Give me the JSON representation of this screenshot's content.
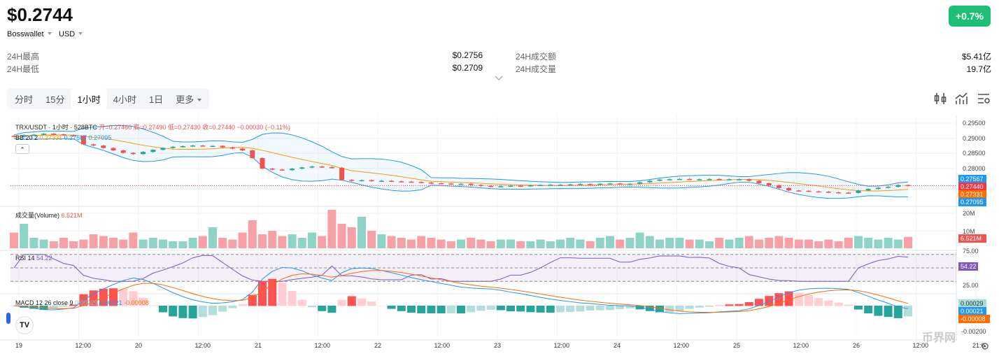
{
  "header": {
    "price": "$0.2744",
    "change": "+0.7%",
    "exchange": "Bosswallet",
    "currency": "USD"
  },
  "stats": [
    {
      "label": "24H最高",
      "value": "$0.2756"
    },
    {
      "label": "24H最低",
      "value": "$0.2709"
    },
    {
      "label": "24H成交额",
      "value": "$5.41亿"
    },
    {
      "label": "24H成交量",
      "value": "19.7亿"
    }
  ],
  "tabs": [
    {
      "label": "分时"
    },
    {
      "label": "15分"
    },
    {
      "label": "1小时",
      "active": true
    },
    {
      "label": "4小时"
    },
    {
      "label": "1日"
    },
    {
      "label": "更多"
    }
  ],
  "legend": {
    "title": "TRX/USDT · 1小时 · 528BTC",
    "ohlc": "开=0.27460 高=0.27490 低=0.27430 收=0.27440 −0.00030 (−0.11%)",
    "bb_label": "BB 20 2",
    "bb_mid": "0.27331",
    "bb_up": "0.27567",
    "bb_low": "0.27095",
    "vol_label": "成交量(Volume)",
    "vol_value": "6.521M",
    "rsi_label": "RSI 14",
    "rsi_value": "54.22",
    "macd_label": "MACD 12 26 close 9",
    "macd_hist": "0.00029",
    "macd_line": "0.00021",
    "macd_signal": "-0.00008"
  },
  "price_axis": [
    "0.29500",
    "0.29000",
    "0.28500",
    "0.28000"
  ],
  "price_tags": {
    "bb_up": "0.27567",
    "last": "0.27440",
    "bb_mid": "0.27331",
    "bb_low": "0.27095"
  },
  "vol_axis": [
    "20M",
    "10M"
  ],
  "vol_tag": "6.521M",
  "rsi_axis": [
    "75.00",
    "25.00"
  ],
  "rsi_tag": "54.22",
  "macd_axis": [
    "-0.00200"
  ],
  "macd_tags": {
    "hist": "0.00029",
    "line": "0.00021",
    "signal": "-0.00008"
  },
  "time_axis": [
    "19",
    "12:00",
    "20",
    "12:00",
    "21",
    "12:00",
    "22",
    "12:00",
    "23",
    "12:00",
    "24",
    "12:00",
    "25",
    "12:00",
    "26",
    "12:00",
    "21:0"
  ],
  "watermark": "币界网",
  "colors": {
    "up": "#26a69a",
    "down": "#ef5350",
    "accent": "#1ebe76",
    "bb": "#2196f3",
    "mid": "#ff9800",
    "rsi": "#7e57c2"
  },
  "chart_data": {
    "type": "candlestick",
    "interval": "2h samples",
    "ylim": [
      0.27,
      0.296
    ],
    "closes": [
      0.2905,
      0.291,
      0.2912,
      0.2915,
      0.2913,
      0.291,
      0.2908,
      0.288,
      0.2876,
      0.2868,
      0.286,
      0.2852,
      0.2848,
      0.2855,
      0.2862,
      0.2868,
      0.2872,
      0.2874,
      0.2876,
      0.2875,
      0.2875,
      0.287,
      0.2866,
      0.286,
      0.2835,
      0.28,
      0.2797,
      0.2795,
      0.28,
      0.2804,
      0.2807,
      0.2805,
      0.2803,
      0.2763,
      0.276,
      0.2762,
      0.2759,
      0.276,
      0.2758,
      0.2757,
      0.2756,
      0.2754,
      0.2752,
      0.2751,
      0.275,
      0.275,
      0.2746,
      0.2743,
      0.2741,
      0.2742,
      0.2744,
      0.2743,
      0.2745,
      0.2746,
      0.2747,
      0.2747,
      0.2748,
      0.2749,
      0.2748,
      0.275,
      0.2751,
      0.275,
      0.275,
      0.2755,
      0.276,
      0.2764,
      0.2765,
      0.2766,
      0.2764,
      0.2765,
      0.2766,
      0.2764,
      0.2765,
      0.2765,
      0.276,
      0.2752,
      0.2745,
      0.2736,
      0.2728,
      0.2727,
      0.2725,
      0.2724,
      0.2722,
      0.2721,
      0.272,
      0.2728,
      0.2733,
      0.2737,
      0.274,
      0.2746,
      0.2744
    ],
    "volumes_m": [
      9,
      14,
      6,
      5,
      4,
      6,
      4,
      5,
      8,
      7,
      6,
      5,
      9,
      5,
      6,
      5,
      4,
      4,
      6,
      7,
      12,
      6,
      5,
      9,
      16,
      8,
      10,
      7,
      8,
      6,
      9,
      7,
      22,
      14,
      12,
      18,
      10,
      8,
      7,
      6,
      5,
      7,
      6,
      5,
      4,
      5,
      6,
      5,
      4,
      5,
      5,
      4,
      4,
      5,
      4,
      5,
      6,
      5,
      4,
      6,
      7,
      5,
      6,
      9,
      7,
      5,
      6,
      6,
      5,
      5,
      4,
      6,
      5,
      6,
      7,
      5,
      6,
      7,
      6,
      5,
      5,
      4,
      5,
      4,
      6,
      7,
      6,
      5,
      6,
      5,
      6.521
    ]
  }
}
